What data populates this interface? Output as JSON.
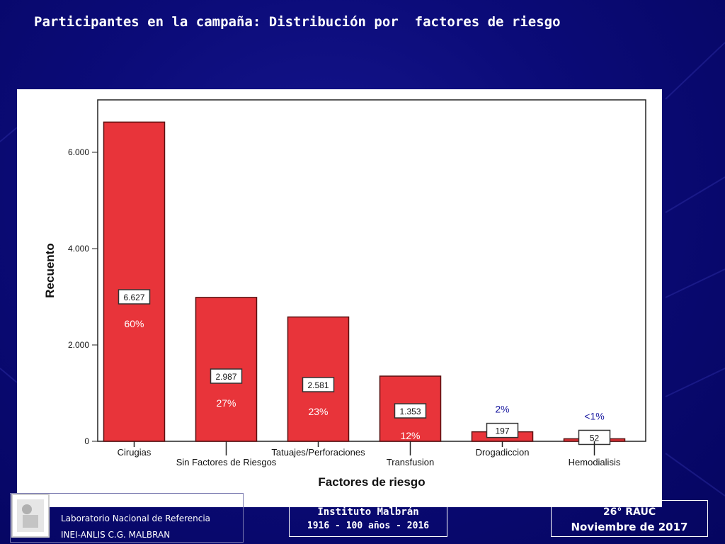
{
  "slide": {
    "title": "Participantes en la campaña: Distribución por  factores de riesgo"
  },
  "footer": {
    "lab_line1": "Laboratorio Nacional de Referencia",
    "lab_line2": "INEI-ANLIS C.G. MALBRAN",
    "institute_line1": "Instituto Malbrán",
    "institute_line2": "1916 - 100 años - 2016",
    "event_line1": "26° RAUC",
    "event_line2": "Noviembre de 2017"
  },
  "colors": {
    "background": "#0b0b78",
    "bar_fill": "#e8343a",
    "bar_stroke": "#5a1010",
    "percent_text": "#1a1aa0",
    "pct_text_in_bar": "#ffffff"
  },
  "chart_data": {
    "type": "bar",
    "title": "",
    "xlabel": "Factores de riesgo",
    "ylabel": "Recuento",
    "ylim": [
      0,
      7000
    ],
    "yticks": [
      "0",
      "2.000",
      "4.000",
      "6.000"
    ],
    "ytick_values": [
      0,
      2000,
      4000,
      6000
    ],
    "grid": false,
    "categories": [
      "Cirugias",
      "Sin Factores de Riesgos",
      "Tatuajes/Perforaciones",
      "Transfusion",
      "Drogadiccion",
      "Hemodialisis"
    ],
    "values": [
      6627,
      2987,
      2581,
      1353,
      197,
      52
    ],
    "value_labels": [
      "6.627",
      "2.987",
      "2.581",
      "1.353",
      "197",
      "52"
    ],
    "percent_labels": [
      "60%",
      "27%",
      "23%",
      "12%",
      "2%",
      "<1%"
    ]
  }
}
